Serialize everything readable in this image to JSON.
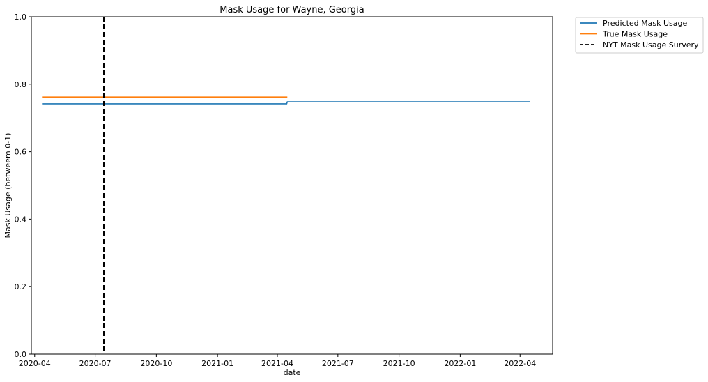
{
  "chart_data": {
    "type": "line",
    "title": "Mask Usage for Wayne, Georgia",
    "xlabel": "date",
    "ylabel": "Mask Usage (betweem 0-1)",
    "xlim": [
      "2020-03-27",
      "2022-05-20"
    ],
    "ylim": [
      0,
      1
    ],
    "x_ticks": [
      "2020-04",
      "2020-07",
      "2020-10",
      "2021-01",
      "2021-04",
      "2021-07",
      "2021-10",
      "2022-01",
      "2022-04"
    ],
    "y_ticks": [
      "0.0",
      "0.2",
      "0.4",
      "0.6",
      "0.8",
      "1.0"
    ],
    "grid": false,
    "legend_position": "outside-top-right",
    "series": [
      {
        "name": "Predicted Mask Usage",
        "color": "#1f77b4",
        "style": "solid",
        "x": [
          "2020-04-12",
          "2021-04-15",
          "2021-04-16",
          "2022-04-16"
        ],
        "values": [
          0.742,
          0.742,
          0.748,
          0.748
        ]
      },
      {
        "name": "True Mask Usage",
        "color": "#ff7f0e",
        "style": "solid",
        "x": [
          "2020-04-12",
          "2021-04-16"
        ],
        "values": [
          0.762,
          0.762
        ]
      },
      {
        "name": "NYT Mask Usage Survery",
        "color": "#000000",
        "style": "dashed",
        "type": "vline",
        "x": "2020-07-14"
      }
    ]
  }
}
